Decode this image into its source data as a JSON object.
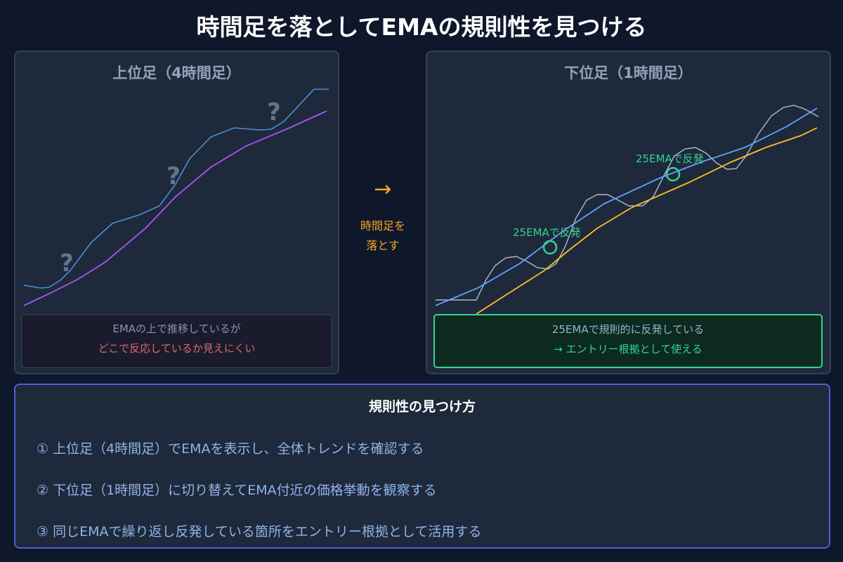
{
  "title": "時間足を落としてEMAの規則性を見つける",
  "left_panel": {
    "title": "上位足（4時間足）",
    "question_mark": "?",
    "note_line1": "EMAの上で推移しているが",
    "note_line2": "どこで反応しているか見えにくい"
  },
  "middle": {
    "arrow": "→",
    "line1": "時間足を",
    "line2": "落とす"
  },
  "right_panel": {
    "title": "下位足（1時間足）",
    "bounce_label_1": "25EMAで反発",
    "bounce_label_2": "25EMAで反発",
    "note_line1": "25EMAで規則的に反発している",
    "note_line2": "→ エントリー根拠として使える"
  },
  "bottom": {
    "title": "規則性の見つけ方",
    "steps": [
      "① 上位足（4時間足）でEMAを表示し、全体トレンドを確認する",
      "② 下位足（1時間足）に切り替えてEMA付近の価格挙動を観察する",
      "③ 同じEMAで繰り返し反発している箇所をエントリー根拠として活用する"
    ]
  },
  "colors": {
    "background": "#0f172a",
    "panel": "#1e293b",
    "price_4h": "#4a8fd9",
    "ema_4h": "#a855f7",
    "price_1h": "#cbd5e1",
    "ema25": "#60a5fa",
    "ema_slow": "#fbbf24",
    "bounce": "#34d399",
    "warning": "#e06666",
    "accent": "#f5a623"
  }
}
